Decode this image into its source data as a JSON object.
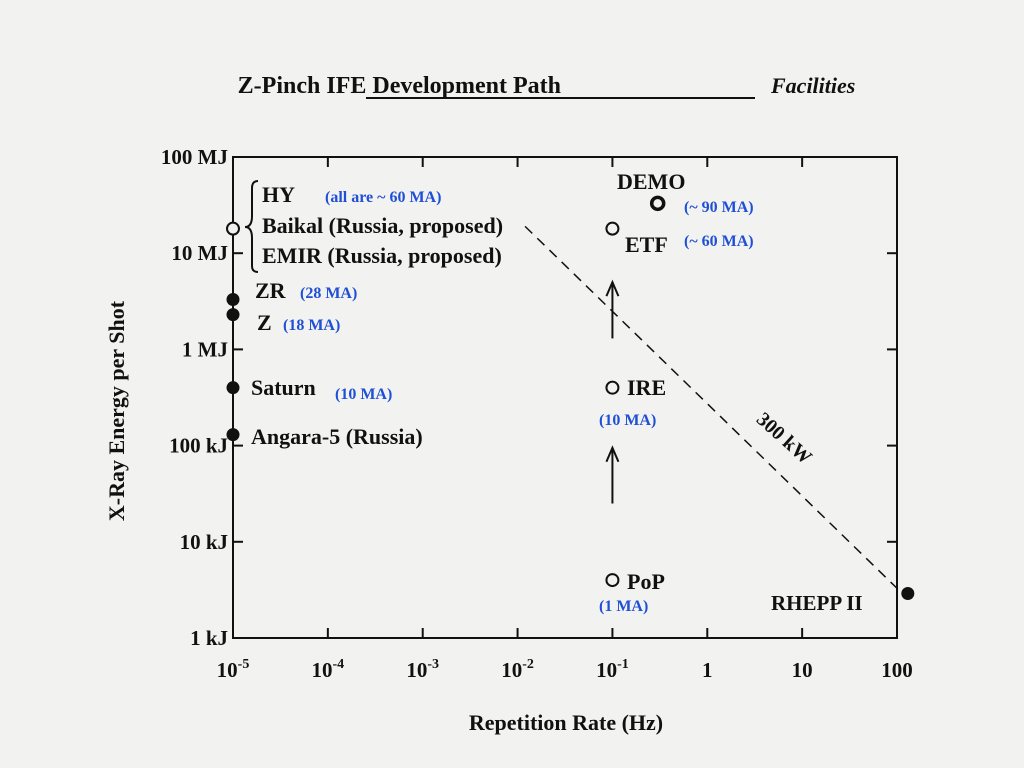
{
  "chart_data": {
    "type": "scatter",
    "title": "Z-Pinch IFE Development Path",
    "subtitle": "Facilities",
    "xlabel": "Repetition Rate (Hz)",
    "ylabel": "X-Ray Energy per Shot",
    "x_scale": "log",
    "y_scale": "log",
    "xlim_hz": [
      1e-05,
      100
    ],
    "ylim_joules": [
      1000,
      100000000
    ],
    "x_ticks": [
      {
        "value": 1e-05,
        "base": "10",
        "exp": "-5"
      },
      {
        "value": 0.0001,
        "base": "10",
        "exp": "-4"
      },
      {
        "value": 0.001,
        "base": "10",
        "exp": "-3"
      },
      {
        "value": 0.01,
        "base": "10",
        "exp": "-2"
      },
      {
        "value": 0.1,
        "base": "10",
        "exp": "-1"
      },
      {
        "value": 1,
        "base": "1",
        "exp": ""
      },
      {
        "value": 10,
        "base": "10",
        "exp": ""
      },
      {
        "value": 100,
        "base": "100",
        "exp": ""
      }
    ],
    "y_ticks": [
      {
        "value": 1000,
        "label": "1 kJ"
      },
      {
        "value": 10000,
        "label": "10 kJ"
      },
      {
        "value": 100000,
        "label": "100 kJ"
      },
      {
        "value": 1000000,
        "label": "1 MJ"
      },
      {
        "value": 10000000,
        "label": "10 MJ"
      },
      {
        "value": 100000000,
        "label": "100 MJ"
      }
    ],
    "points": [
      {
        "key": "hy",
        "rate_hz": 1e-05,
        "energy_j": 18000000,
        "marker": "open"
      },
      {
        "key": "zr",
        "rate_hz": 1e-05,
        "energy_j": 3300000,
        "marker": "filled"
      },
      {
        "key": "z",
        "rate_hz": 1e-05,
        "energy_j": 2300000,
        "marker": "filled"
      },
      {
        "key": "saturn",
        "rate_hz": 1e-05,
        "energy_j": 400000,
        "marker": "filled"
      },
      {
        "key": "angara",
        "rate_hz": 1e-05,
        "energy_j": 130000,
        "marker": "filled"
      },
      {
        "key": "demo",
        "rate_hz": 0.3,
        "energy_j": 33000000,
        "marker": "open"
      },
      {
        "key": "etf",
        "rate_hz": 0.1,
        "energy_j": 18000000,
        "marker": "open"
      },
      {
        "key": "ire",
        "rate_hz": 0.1,
        "energy_j": 400000,
        "marker": "open"
      },
      {
        "key": "pop",
        "rate_hz": 0.1,
        "energy_j": 4000,
        "marker": "open"
      },
      {
        "key": "rhepp",
        "rate_hz": 130,
        "energy_j": 2900,
        "marker": "filled"
      }
    ],
    "labels": {
      "hy": "HY",
      "hy_note": "(all are ~ 60 MA)",
      "baikal": "Baikal (Russia, proposed)",
      "emir": "EMIR (Russia, proposed)",
      "zr": "ZR",
      "zr_note": "(28 MA)",
      "z": "Z",
      "z_note": "(18 MA)",
      "saturn": "Saturn",
      "saturn_note": "(10 MA)",
      "angara": "Angara-5 (Russia)",
      "demo": "DEMO",
      "demo_note": "(~ 90 MA)",
      "etf": "ETF",
      "etf_note": "(~ 60 MA)",
      "ire": "IRE",
      "ire_note": "(10 MA)",
      "pop": "PoP",
      "pop_note": "(1 MA)",
      "rhepp": "RHEPP II"
    },
    "power_line": {
      "label": "300 kW",
      "from": {
        "rate_hz": 0.012,
        "energy_j": 19000000
      },
      "to": {
        "rate_hz": 110,
        "energy_j": 3000
      }
    },
    "arrows": [
      {
        "rate_hz": 0.1,
        "from_energy_j": 1300000,
        "to_energy_j": 5000000
      },
      {
        "rate_hz": 0.1,
        "from_energy_j": 25000,
        "to_energy_j": 95000
      }
    ],
    "colors": {
      "text": "#111111",
      "note": "#1f4fd6",
      "background": "#f2f2f0"
    }
  }
}
